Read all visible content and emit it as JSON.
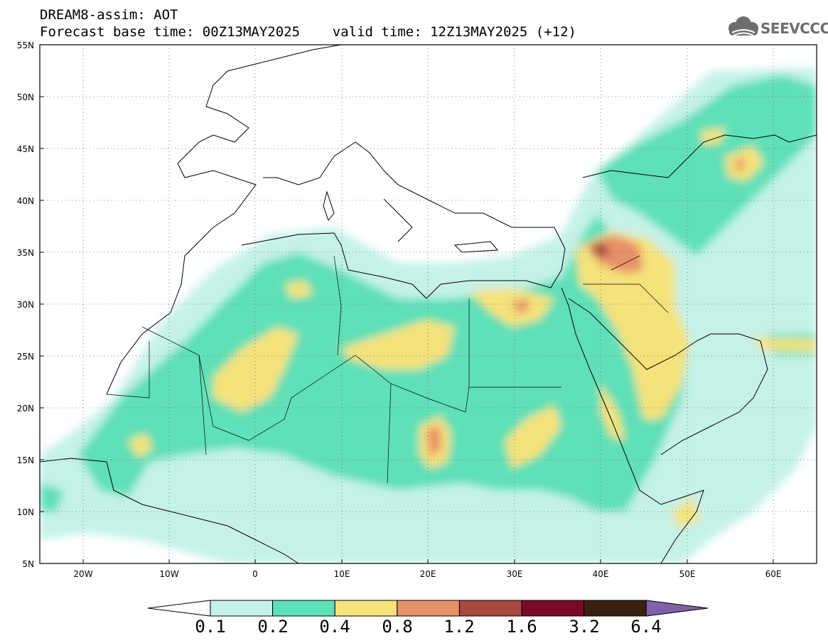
{
  "header": {
    "line1": "DREAM8-assim: AOT",
    "line2": "Forecast base time: 00Z13MAY2025    valid time: 12Z13MAY2025 (+12)"
  },
  "logo": {
    "text": "SEEVCCC",
    "icon": "cloud-icon"
  },
  "map": {
    "lon_range": [
      -25,
      65
    ],
    "lat_range": [
      5,
      55
    ],
    "lat_labels": [
      "55N",
      "50N",
      "45N",
      "40N",
      "35N",
      "30N",
      "25N",
      "20N",
      "15N",
      "10N",
      "5N"
    ],
    "lon_labels": [
      "20W",
      "10W",
      "0",
      "10E",
      "20E",
      "30E",
      "40E",
      "50E",
      "60E"
    ],
    "grid": "dotted"
  },
  "colorbar": {
    "labels": [
      "0.1",
      "0.2",
      "0.4",
      "0.8",
      "1.2",
      "1.6",
      "3.2",
      "6.4"
    ],
    "colors": [
      "#ffffff",
      "#c5f2e8",
      "#5ee0b8",
      "#f5e27a",
      "#e89068",
      "#a84840",
      "#7a0a28",
      "#3a2010",
      "#8060a8"
    ]
  }
}
